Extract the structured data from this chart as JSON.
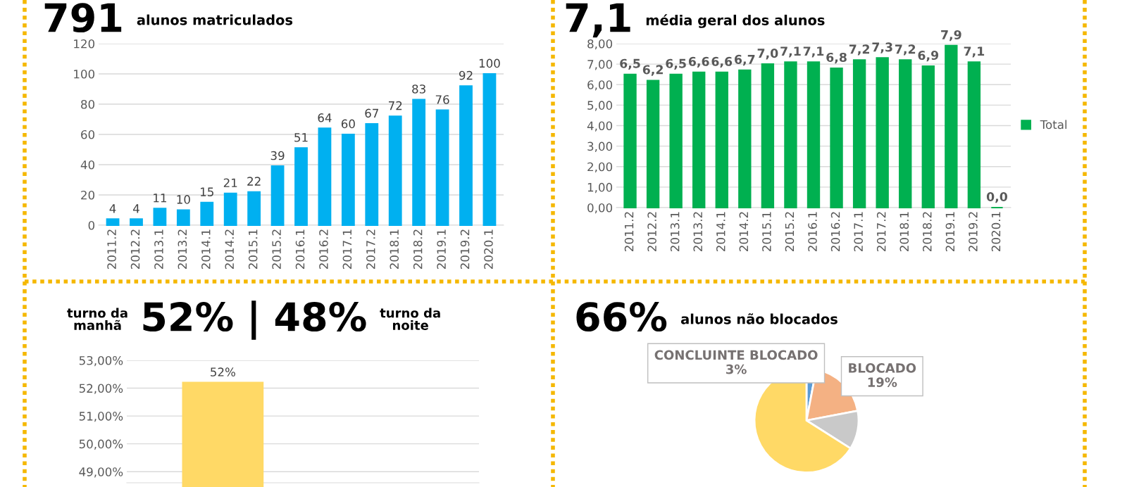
{
  "chart_data": [
    {
      "type": "bar",
      "title": "791",
      "subtitle": "alunos matriculados",
      "categories": [
        "2011.2",
        "2012.2",
        "2013.1",
        "2013.2",
        "2014.1",
        "2014.2",
        "2015.1",
        "2015.2",
        "2016.1",
        "2016.2",
        "2017.1",
        "2017.2",
        "2018.1",
        "2018.2",
        "2019.1",
        "2019.2",
        "2020.1"
      ],
      "values": [
        4,
        4,
        11,
        10,
        15,
        21,
        22,
        39,
        51,
        64,
        60,
        67,
        72,
        83,
        76,
        92,
        100
      ],
      "color": "#00b0f0",
      "ylim": [
        0,
        120
      ],
      "yticks": [
        0,
        20,
        40,
        60,
        80,
        100,
        120
      ],
      "grid": "y",
      "data_labels": true
    },
    {
      "type": "bar",
      "title": "7,1",
      "subtitle": "média geral dos alunos",
      "categories": [
        "2011.2",
        "2012.2",
        "2013.1",
        "2013.2",
        "2014.1",
        "2014.2",
        "2015.1",
        "2015.2",
        "2016.1",
        "2016.2",
        "2017.1",
        "2017.2",
        "2018.1",
        "2018.2",
        "2019.1",
        "2019.2",
        "2020.1"
      ],
      "series": [
        {
          "name": "Total",
          "color": "#00b050",
          "values": [
            6.5,
            6.2,
            6.5,
            6.6,
            6.6,
            6.7,
            7.0,
            7.1,
            7.1,
            6.8,
            7.2,
            7.3,
            7.2,
            6.9,
            7.9,
            7.1,
            0.0
          ],
          "value_labels": [
            "6,5",
            "6,2",
            "6,5",
            "6,6",
            "6,6",
            "6,7",
            "7,0",
            "7,1",
            "7,1",
            "6,8",
            "7,2",
            "7,3",
            "7,2",
            "6,9",
            "7,9",
            "7,1",
            "0,0"
          ]
        }
      ],
      "ylim": [
        0,
        8
      ],
      "yticks": [
        {
          "value": 0,
          "label": "0,00"
        },
        {
          "value": 1,
          "label": "1,00"
        },
        {
          "value": 2,
          "label": "2,00"
        },
        {
          "value": 3,
          "label": "3,00"
        },
        {
          "value": 4,
          "label": "4,00"
        },
        {
          "value": 5,
          "label": "5,00"
        },
        {
          "value": 6,
          "label": "6,00"
        },
        {
          "value": 7,
          "label": "7,00"
        },
        {
          "value": 8,
          "label": "8,00"
        }
      ],
      "grid": "y",
      "legend": "right"
    },
    {
      "type": "bar",
      "annotations": [
        "turno da manhã",
        "52%",
        "|",
        "48%",
        "turno da noite"
      ],
      "categories": [
        null,
        null
      ],
      "values": [
        52.2,
        null
      ],
      "value_labels": [
        "52%",
        null
      ],
      "color": "#ffd966",
      "ylim": [
        48.6,
        53
      ],
      "yticks": [
        {
          "value": 49,
          "label": "49,00%"
        },
        {
          "value": 50,
          "label": "50,00%"
        },
        {
          "value": 51,
          "label": "51,00%"
        },
        {
          "value": 52,
          "label": "52,00%"
        },
        {
          "value": 53,
          "label": "53,00%"
        }
      ],
      "grid": "y",
      "tick_labels": "y"
    },
    {
      "type": "pie",
      "title": "66%",
      "subtitle": "alunos não blocados",
      "categories": [
        "CONCLUINTE BLOCADO",
        "BLOCADO",
        null,
        null
      ],
      "values": [
        3,
        19,
        12,
        66
      ],
      "value_labels": [
        "3%",
        "19%",
        null,
        null
      ],
      "colors": [
        "#5b9bd5",
        "#f4b183",
        "#c9c9c9",
        "#ffd966"
      ]
    }
  ]
}
